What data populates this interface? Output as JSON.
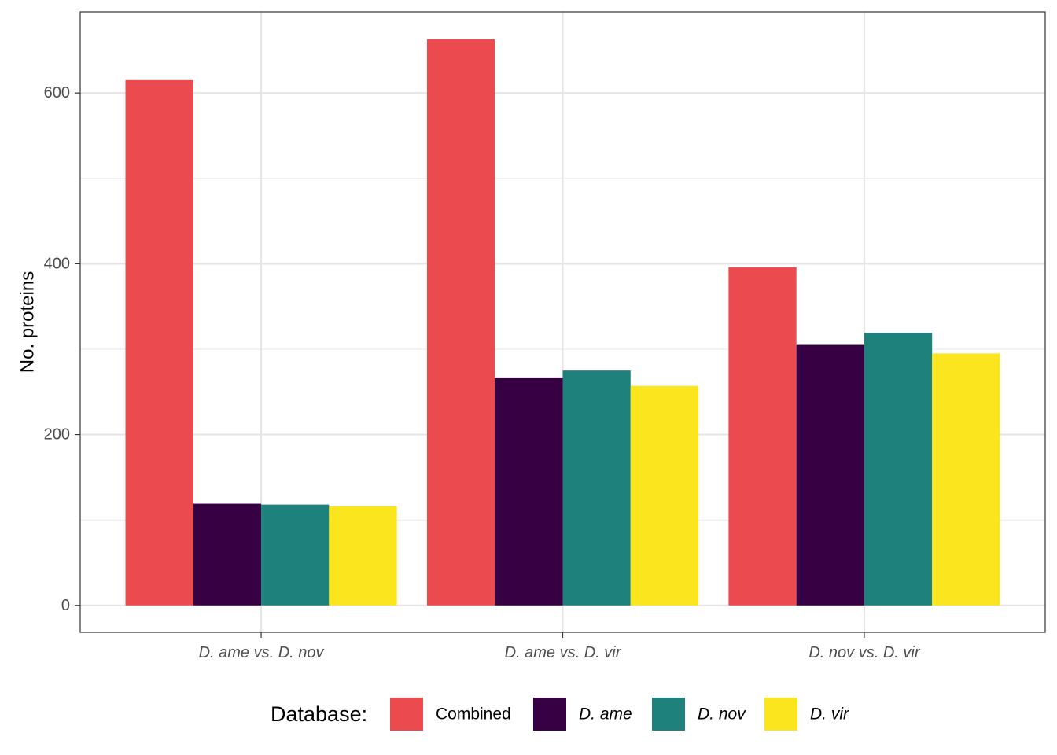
{
  "chart_data": {
    "type": "bar",
    "categories": [
      "D. ame vs. D. nov",
      "D. ame vs. D. vir",
      "D. nov vs. D. vir"
    ],
    "series": [
      {
        "name": "Combined",
        "color": "#EB4A4E",
        "values": [
          615,
          663,
          396
        ]
      },
      {
        "name": "D. ame",
        "color": "#360043",
        "values": [
          119,
          266,
          305
        ]
      },
      {
        "name": "D. nov",
        "color": "#1F817B",
        "values": [
          118,
          275,
          319
        ]
      },
      {
        "name": "D. vir",
        "color": "#FBE51F",
        "values": [
          116,
          257,
          295
        ]
      }
    ],
    "title": "",
    "xlabel": "",
    "ylabel": "No. proteins",
    "ylim": [
      -31.5,
      695
    ],
    "yticks": [
      0,
      200,
      400,
      600
    ],
    "yticks_minor": [
      100,
      300,
      500
    ],
    "grid": true,
    "legend": {
      "title": "Database:",
      "position": "bottom",
      "italic_entries": [
        "D. ame",
        "D. nov",
        "D. vir"
      ]
    },
    "category_labels_italic": true
  }
}
